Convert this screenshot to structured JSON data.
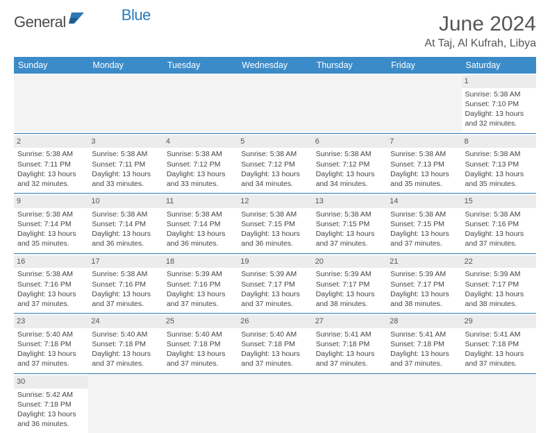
{
  "logo": {
    "text1": "General",
    "text2": "Blue"
  },
  "title": "June 2024",
  "location": "At Taj, Al Kufrah, Libya",
  "colors": {
    "header_bg": "#3b8bc9",
    "header_fg": "#ffffff",
    "accent": "#2a7ab8",
    "daybar": "#ececec",
    "text": "#444444"
  },
  "weekdays": [
    "Sunday",
    "Monday",
    "Tuesday",
    "Wednesday",
    "Thursday",
    "Friday",
    "Saturday"
  ],
  "weeks": [
    [
      null,
      null,
      null,
      null,
      null,
      null,
      {
        "n": "1",
        "sr": "5:38 AM",
        "ss": "7:10 PM",
        "dl": "13 hours and 32 minutes."
      }
    ],
    [
      {
        "n": "2",
        "sr": "5:38 AM",
        "ss": "7:11 PM",
        "dl": "13 hours and 32 minutes."
      },
      {
        "n": "3",
        "sr": "5:38 AM",
        "ss": "7:11 PM",
        "dl": "13 hours and 33 minutes."
      },
      {
        "n": "4",
        "sr": "5:38 AM",
        "ss": "7:12 PM",
        "dl": "13 hours and 33 minutes."
      },
      {
        "n": "5",
        "sr": "5:38 AM",
        "ss": "7:12 PM",
        "dl": "13 hours and 34 minutes."
      },
      {
        "n": "6",
        "sr": "5:38 AM",
        "ss": "7:12 PM",
        "dl": "13 hours and 34 minutes."
      },
      {
        "n": "7",
        "sr": "5:38 AM",
        "ss": "7:13 PM",
        "dl": "13 hours and 35 minutes."
      },
      {
        "n": "8",
        "sr": "5:38 AM",
        "ss": "7:13 PM",
        "dl": "13 hours and 35 minutes."
      }
    ],
    [
      {
        "n": "9",
        "sr": "5:38 AM",
        "ss": "7:14 PM",
        "dl": "13 hours and 35 minutes."
      },
      {
        "n": "10",
        "sr": "5:38 AM",
        "ss": "7:14 PM",
        "dl": "13 hours and 36 minutes."
      },
      {
        "n": "11",
        "sr": "5:38 AM",
        "ss": "7:14 PM",
        "dl": "13 hours and 36 minutes."
      },
      {
        "n": "12",
        "sr": "5:38 AM",
        "ss": "7:15 PM",
        "dl": "13 hours and 36 minutes."
      },
      {
        "n": "13",
        "sr": "5:38 AM",
        "ss": "7:15 PM",
        "dl": "13 hours and 37 minutes."
      },
      {
        "n": "14",
        "sr": "5:38 AM",
        "ss": "7:15 PM",
        "dl": "13 hours and 37 minutes."
      },
      {
        "n": "15",
        "sr": "5:38 AM",
        "ss": "7:16 PM",
        "dl": "13 hours and 37 minutes."
      }
    ],
    [
      {
        "n": "16",
        "sr": "5:38 AM",
        "ss": "7:16 PM",
        "dl": "13 hours and 37 minutes."
      },
      {
        "n": "17",
        "sr": "5:38 AM",
        "ss": "7:16 PM",
        "dl": "13 hours and 37 minutes."
      },
      {
        "n": "18",
        "sr": "5:39 AM",
        "ss": "7:16 PM",
        "dl": "13 hours and 37 minutes."
      },
      {
        "n": "19",
        "sr": "5:39 AM",
        "ss": "7:17 PM",
        "dl": "13 hours and 37 minutes."
      },
      {
        "n": "20",
        "sr": "5:39 AM",
        "ss": "7:17 PM",
        "dl": "13 hours and 38 minutes."
      },
      {
        "n": "21",
        "sr": "5:39 AM",
        "ss": "7:17 PM",
        "dl": "13 hours and 38 minutes."
      },
      {
        "n": "22",
        "sr": "5:39 AM",
        "ss": "7:17 PM",
        "dl": "13 hours and 38 minutes."
      }
    ],
    [
      {
        "n": "23",
        "sr": "5:40 AM",
        "ss": "7:18 PM",
        "dl": "13 hours and 37 minutes."
      },
      {
        "n": "24",
        "sr": "5:40 AM",
        "ss": "7:18 PM",
        "dl": "13 hours and 37 minutes."
      },
      {
        "n": "25",
        "sr": "5:40 AM",
        "ss": "7:18 PM",
        "dl": "13 hours and 37 minutes."
      },
      {
        "n": "26",
        "sr": "5:40 AM",
        "ss": "7:18 PM",
        "dl": "13 hours and 37 minutes."
      },
      {
        "n": "27",
        "sr": "5:41 AM",
        "ss": "7:18 PM",
        "dl": "13 hours and 37 minutes."
      },
      {
        "n": "28",
        "sr": "5:41 AM",
        "ss": "7:18 PM",
        "dl": "13 hours and 37 minutes."
      },
      {
        "n": "29",
        "sr": "5:41 AM",
        "ss": "7:18 PM",
        "dl": "13 hours and 37 minutes."
      }
    ],
    [
      {
        "n": "30",
        "sr": "5:42 AM",
        "ss": "7:18 PM",
        "dl": "13 hours and 36 minutes."
      },
      null,
      null,
      null,
      null,
      null,
      null
    ]
  ],
  "labels": {
    "sunrise": "Sunrise:",
    "sunset": "Sunset:",
    "daylight": "Daylight:"
  }
}
